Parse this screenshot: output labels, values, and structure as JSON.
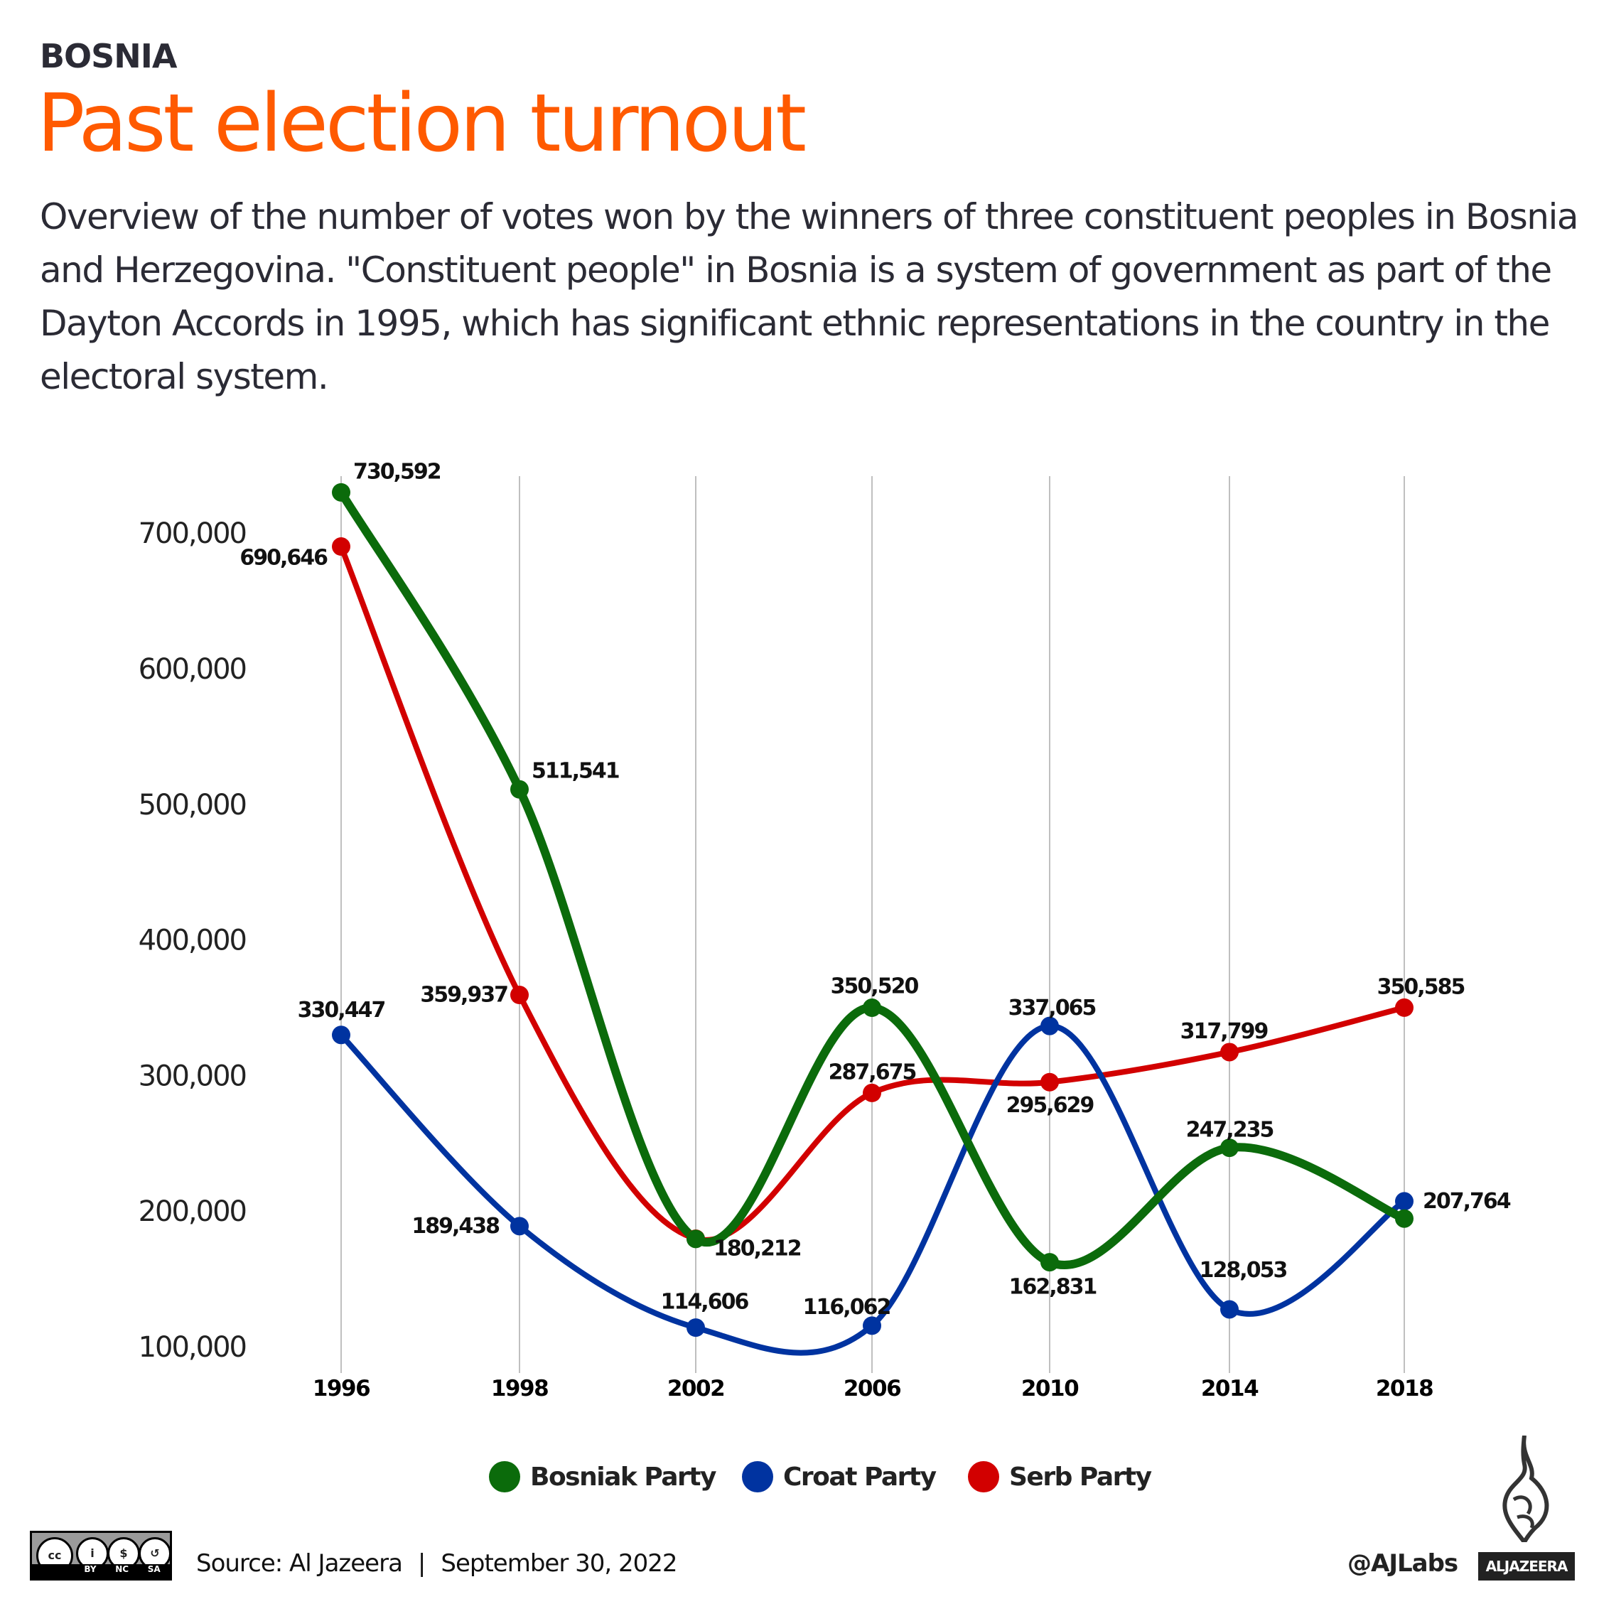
{
  "header": {
    "kicker": "BOSNIA",
    "title": "Past election turnout",
    "description": "Overview of the number of votes won by the winners of three constituent peoples in Bosnia and Herzegovina. \"Constituent people\" in Bosnia is a system of government as part of the Dayton Accords in 1995, which has significant ethnic representations in the country in the electoral system."
  },
  "chart_data": {
    "type": "line",
    "categories": [
      "1996",
      "1998",
      "2002",
      "2006",
      "2010",
      "2014",
      "2018"
    ],
    "yticks": [
      "100,000",
      "200,000",
      "300,000",
      "400,000",
      "500,000",
      "600,000",
      "700,000"
    ],
    "ytick_values": [
      100000,
      200000,
      300000,
      400000,
      500000,
      600000,
      700000
    ],
    "grid": "vertical",
    "legend_position": "bottom",
    "series": [
      {
        "name": "Bosniak Party",
        "color": "#0b6b0b",
        "values": [
          730592,
          511541,
          180000,
          350520,
          162831,
          247235,
          195000
        ],
        "labels": [
          "730,592",
          "511,541",
          "",
          "350,520",
          "162,831",
          "247,235",
          ""
        ]
      },
      {
        "name": "Croat Party",
        "color": "#0033a0",
        "values": [
          330447,
          189438,
          114606,
          116062,
          337065,
          128053,
          207764
        ],
        "labels": [
          "330,447",
          "189,438",
          "114,606",
          "116,062",
          "337,065",
          "128,053",
          "207,764"
        ]
      },
      {
        "name": "Serb Party",
        "color": "#d20000",
        "values": [
          690646,
          359937,
          180212,
          287675,
          295629,
          317799,
          350585
        ],
        "labels": [
          "690,646",
          "359,937",
          "180,212",
          "287,675",
          "295,629",
          "317,799",
          "350,585"
        ]
      }
    ]
  },
  "footer": {
    "source": "Source: Al Jazeera",
    "separator": "|",
    "date": "September 30, 2022",
    "handle": "@AJLabs",
    "brand": "ALJAZEERA",
    "license": [
      "BY",
      "NC",
      "SA"
    ]
  }
}
